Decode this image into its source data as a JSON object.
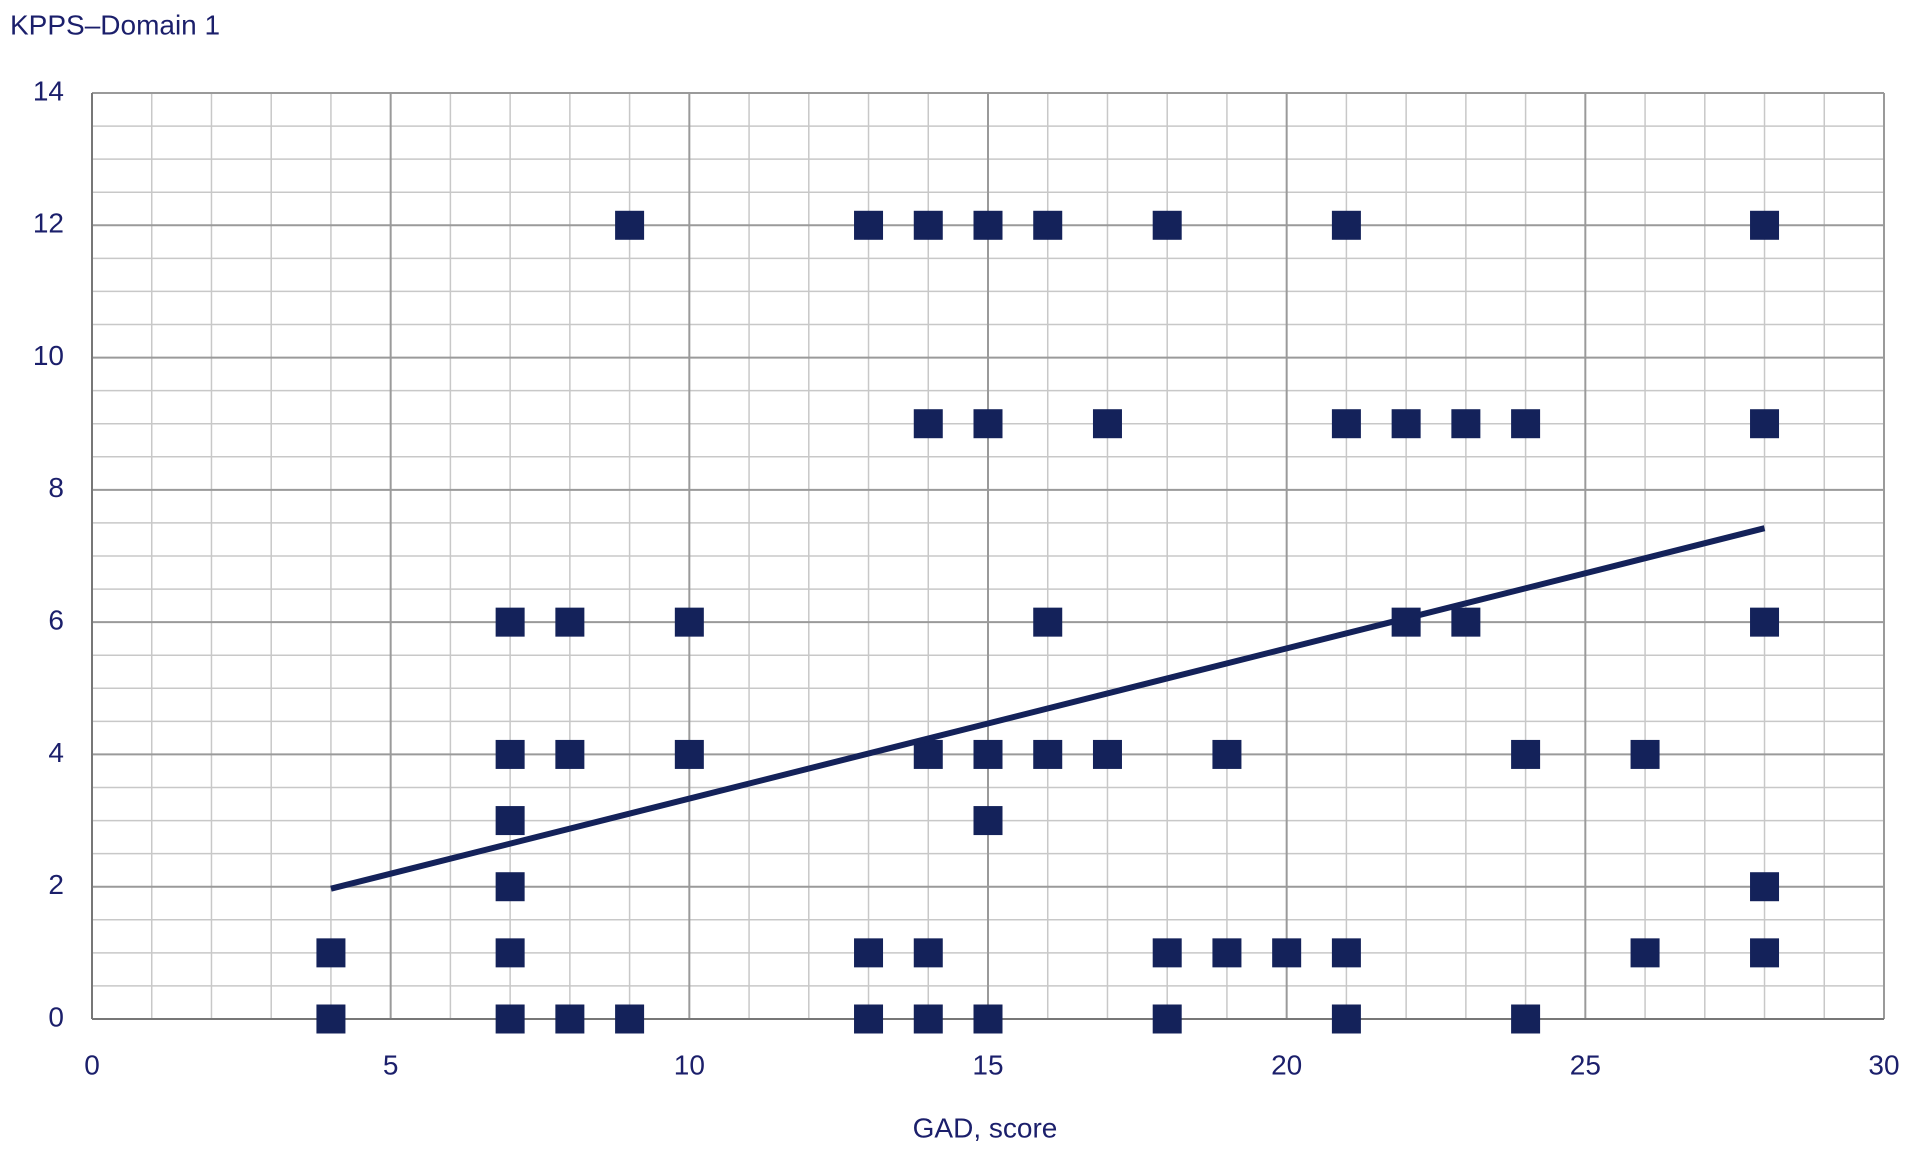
{
  "chart_data": {
    "type": "scatter",
    "y_axis_title": "KPPS–Domain 1",
    "x_axis_title": "GAD, score",
    "x": [
      9,
      13,
      14,
      15,
      16,
      18,
      21,
      28,
      14,
      15,
      17,
      21,
      22,
      23,
      24,
      28,
      7,
      8,
      10,
      16,
      22,
      23,
      28,
      7,
      8,
      10,
      14,
      15,
      16,
      17,
      19,
      24,
      26,
      7,
      15,
      7,
      28,
      4,
      7,
      13,
      14,
      18,
      19,
      20,
      21,
      26,
      28,
      4,
      7,
      8,
      9,
      13,
      14,
      15,
      18,
      21,
      24
    ],
    "values": [
      12,
      12,
      12,
      12,
      12,
      12,
      12,
      12,
      9,
      9,
      9,
      9,
      9,
      9,
      9,
      9,
      6,
      6,
      6,
      6,
      6,
      6,
      6,
      4,
      4,
      4,
      4,
      4,
      4,
      4,
      4,
      4,
      4,
      3,
      3,
      2,
      2,
      1,
      1,
      1,
      1,
      1,
      1,
      1,
      1,
      1,
      1,
      0,
      0,
      0,
      0,
      0,
      0,
      0,
      0,
      0,
      0
    ],
    "color": "#14225a",
    "trendline": {
      "x": [
        4,
        28
      ],
      "values": [
        1.97,
        7.42
      ],
      "color": "#14225a"
    },
    "xlim": [
      0,
      30
    ],
    "xticks": [
      0,
      5,
      10,
      15,
      20,
      25,
      30
    ],
    "ylim": [
      0,
      14
    ],
    "yticks": [
      0,
      2,
      4,
      6,
      8,
      10,
      12,
      14
    ],
    "grid": true,
    "x_minor_grid": [
      1,
      2,
      3,
      4,
      6,
      7,
      8,
      9,
      11,
      12,
      13,
      14,
      16,
      17,
      18,
      19,
      21,
      22,
      23,
      24,
      26,
      27,
      28,
      29
    ],
    "y_minor_grid": [
      0.5,
      1,
      1.5,
      2.5,
      3,
      3.5,
      4.5,
      5,
      5.5,
      6.5,
      7,
      7.5,
      8.5,
      9,
      9.5,
      10.5,
      11,
      11.5,
      12.5,
      13,
      13.5
    ]
  }
}
